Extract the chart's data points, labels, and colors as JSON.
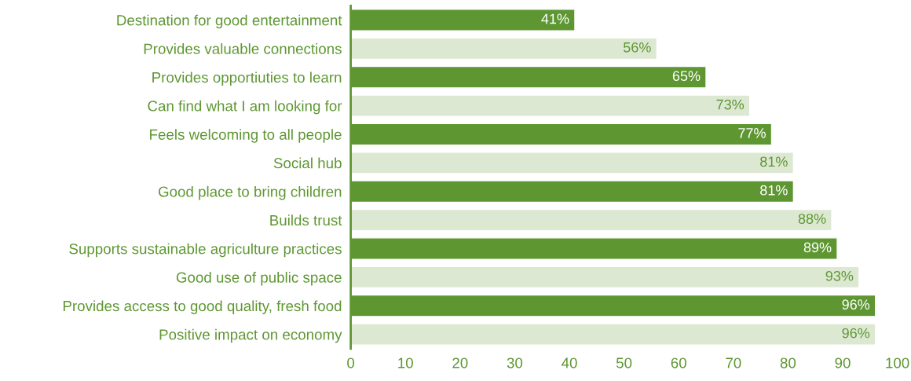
{
  "chart_data": {
    "type": "bar",
    "orientation": "horizontal",
    "categories": [
      "Destination for good entertainment",
      "Provides valuable connections",
      "Provides opportiuties to learn",
      "Can find what I am looking for",
      "Feels welcoming to all people",
      "Social hub",
      "Good place to bring children",
      "Builds trust",
      "Supports sustainable agriculture practices",
      "Good use of public space",
      "Provides access to good quality, fresh food",
      "Positive impact on economy"
    ],
    "values": [
      41,
      56,
      65,
      73,
      77,
      81,
      81,
      88,
      89,
      93,
      96,
      96
    ],
    "value_labels": [
      "41%",
      "56%",
      "65%",
      "73%",
      "77%",
      "81%",
      "81%",
      "88%",
      "89%",
      "93%",
      "96%",
      "96%"
    ],
    "colors": [
      "#5e9732",
      "#dde8d3",
      "#5e9732",
      "#dde8d3",
      "#5e9732",
      "#dde8d3",
      "#5e9732",
      "#dde8d3",
      "#5e9732",
      "#dde8d3",
      "#5e9732",
      "#dde8d3"
    ],
    "xlim": [
      0,
      100
    ],
    "xticks": [
      0,
      10,
      20,
      30,
      40,
      50,
      60,
      70,
      80,
      90,
      100
    ],
    "grid": false,
    "legend": false
  }
}
